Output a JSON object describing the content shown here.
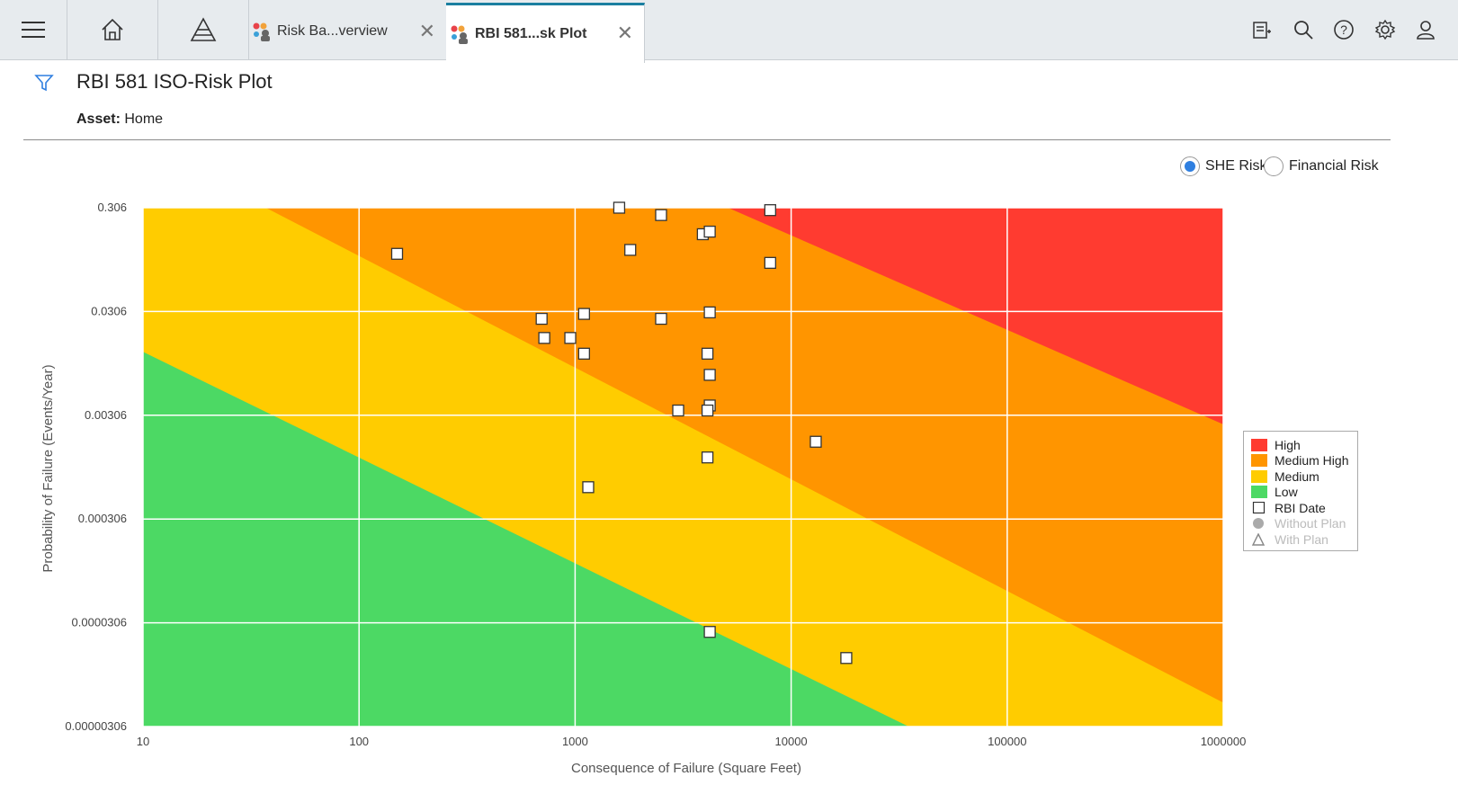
{
  "topbar": {
    "tabs": [
      {
        "label": "Risk Ba...verview",
        "active": false
      },
      {
        "label": "RBI 581...sk Plot",
        "active": true
      }
    ],
    "icons": [
      "menu-icon",
      "home-icon",
      "pyramid-icon",
      "notes-icon",
      "search-icon",
      "help-icon",
      "settings-icon",
      "user-icon"
    ]
  },
  "page": {
    "title": "RBI 581 ISO-Risk Plot",
    "asset_label": "Asset:",
    "asset_value": "Home"
  },
  "risk_toggle": {
    "options": [
      {
        "label": "SHE Risk",
        "selected": true
      },
      {
        "label": "Financial Risk",
        "selected": false
      }
    ]
  },
  "colors": {
    "high": "#ff3b30",
    "medium_high": "#ff9500",
    "medium": "#ffcc00",
    "low": "#4cd964",
    "accent": "#2f7fe0"
  },
  "chart_data": {
    "type": "scatter",
    "xlabel": "Consequence of Failure (Square Feet)",
    "ylabel": "Probability of Failure (Events/Year)",
    "x_scale": "log",
    "y_scale": "log",
    "xlim": [
      10,
      1000000
    ],
    "ylim": [
      3.06e-06,
      0.306
    ],
    "x_ticks": [
      "10",
      "100",
      "1000",
      "10000",
      "100000",
      "1000000"
    ],
    "y_ticks": [
      "0.306",
      "0.0306",
      "0.00306",
      "0.000306",
      "0.0000306",
      "0.00000306"
    ],
    "grid": true,
    "legend_position": "right",
    "regions": [
      {
        "name": "High",
        "color": "#ff3b30"
      },
      {
        "name": "Medium High",
        "color": "#ff9500"
      },
      {
        "name": "Medium",
        "color": "#ffcc00"
      },
      {
        "name": "Low",
        "color": "#4cd964"
      }
    ],
    "region_boundaries": [
      {
        "between": [
          "Low",
          "Medium"
        ],
        "from": [
          10,
          0.0125
        ],
        "to": [
          35000,
          3.06e-06
        ]
      },
      {
        "between": [
          "Medium",
          "Medium High"
        ],
        "from": [
          37,
          0.306
        ],
        "to": [
          1000000,
          5.2e-06
        ]
      },
      {
        "between": [
          "Medium High",
          "High"
        ],
        "from": [
          5100,
          0.306
        ],
        "to": [
          1000000,
          0.0025
        ]
      }
    ],
    "legend": [
      {
        "label": "High",
        "symbol": "square-fill",
        "color": "#ff3b30",
        "muted": false
      },
      {
        "label": "Medium High",
        "symbol": "square-fill",
        "color": "#ff9500",
        "muted": false
      },
      {
        "label": "Medium",
        "symbol": "square-fill",
        "color": "#ffcc00",
        "muted": false
      },
      {
        "label": "Low",
        "symbol": "square-fill",
        "color": "#4cd964",
        "muted": false
      },
      {
        "label": "RBI Date",
        "symbol": "square-open",
        "color": "#333333",
        "muted": false
      },
      {
        "label": "Without Plan",
        "symbol": "circle",
        "color": "#999999",
        "muted": true
      },
      {
        "label": "With Plan",
        "symbol": "triangle",
        "color": "#999999",
        "muted": true
      }
    ],
    "series": [
      {
        "name": "RBI Date",
        "marker": "square",
        "points": [
          {
            "x": 150,
            "y": 0.11
          },
          {
            "x": 1600,
            "y": 0.306
          },
          {
            "x": 2500,
            "y": 0.26
          },
          {
            "x": 3900,
            "y": 0.17
          },
          {
            "x": 4200,
            "y": 0.18
          },
          {
            "x": 8000,
            "y": 0.29
          },
          {
            "x": 1800,
            "y": 0.12
          },
          {
            "x": 8000,
            "y": 0.09
          },
          {
            "x": 700,
            "y": 0.026
          },
          {
            "x": 1100,
            "y": 0.029
          },
          {
            "x": 2500,
            "y": 0.026
          },
          {
            "x": 4200,
            "y": 0.03
          },
          {
            "x": 720,
            "y": 0.017
          },
          {
            "x": 950,
            "y": 0.017
          },
          {
            "x": 1100,
            "y": 0.012
          },
          {
            "x": 4100,
            "y": 0.012
          },
          {
            "x": 4200,
            "y": 0.0075
          },
          {
            "x": 4200,
            "y": 0.0038
          },
          {
            "x": 3000,
            "y": 0.0034
          },
          {
            "x": 4100,
            "y": 0.0034
          },
          {
            "x": 13000,
            "y": 0.0017
          },
          {
            "x": 4100,
            "y": 0.0012
          },
          {
            "x": 1150,
            "y": 0.00062
          },
          {
            "x": 4200,
            "y": 2.5e-05
          },
          {
            "x": 18000,
            "y": 1.4e-05
          }
        ]
      }
    ]
  }
}
